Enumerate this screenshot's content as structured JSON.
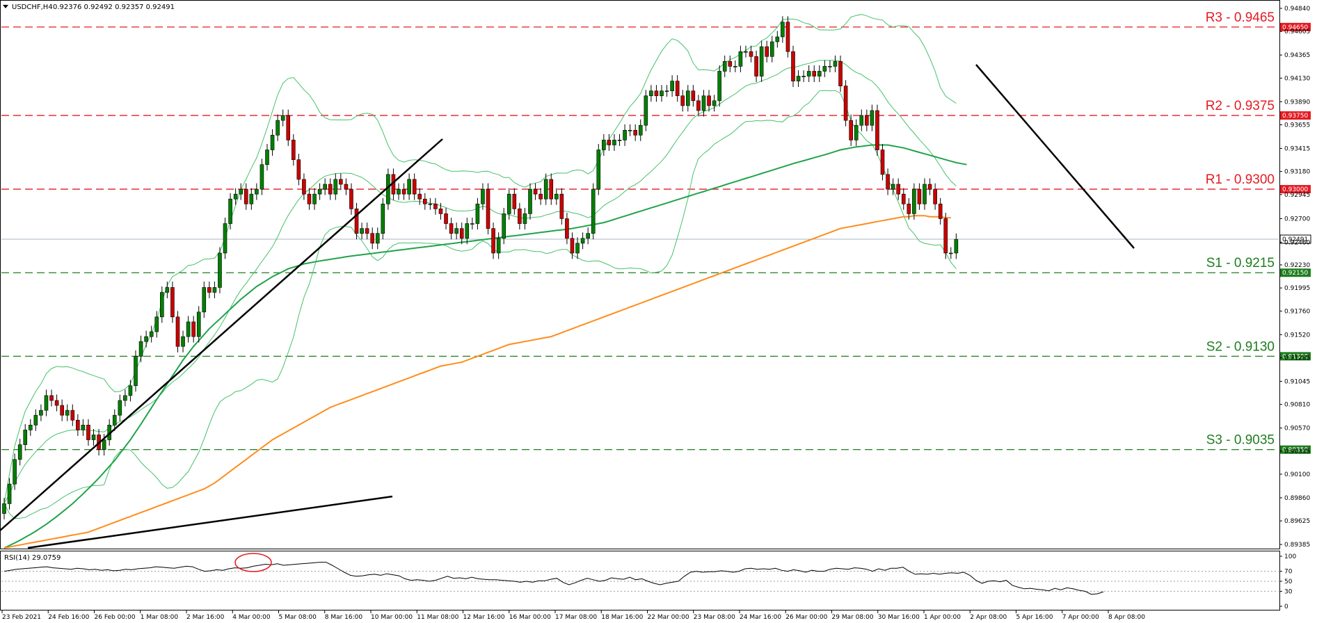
{
  "header": {
    "symbol": "USDCHF,H4",
    "ohlc": "0.92376 0.92492 0.92357 0.92491"
  },
  "rsi_header": "RSI(14) 29.0759",
  "colors": {
    "bull": "#008000",
    "bear": "#cc0000",
    "resistance": "#e31b23",
    "support": "#1e7d1e",
    "ma100": "#1fa34a",
    "ma200": "#ff8c1a",
    "bands": "#45c16a",
    "trend": "#000000",
    "price_line": "#a9b6c2",
    "circle": "#e31b23"
  },
  "chart_data": [
    {
      "type": "line",
      "name": "price",
      "ylim": [
        0.8935,
        0.9484
      ],
      "x_labels": [
        "23 Feb 2021",
        "24 Feb 16:00",
        "26 Feb 00:00",
        "1 Mar 08:00",
        "2 Mar 16:00",
        "4 Mar 00:00",
        "5 Mar 08:00",
        "8 Mar 16:00",
        "10 Mar 00:00",
        "11 Mar 08:00",
        "12 Mar 16:00",
        "16 Mar 00:00",
        "17 Mar 08:00",
        "18 Mar 16:00",
        "22 Mar 00:00",
        "23 Mar 08:00",
        "24 Mar 16:00",
        "26 Mar 00:00",
        "29 Mar 08:00",
        "30 Mar 16:00",
        "1 Apr 00:00",
        "2 Apr 08:00",
        "5 Apr 16:00",
        "7 Apr 00:00",
        "8 Apr 08:00"
      ],
      "y_ticks": [
        "0.94840",
        "0.94605",
        "0.94365",
        "0.94130",
        "0.93890",
        "0.93655",
        "0.93415",
        "0.93180",
        "0.92945",
        "0.92700",
        "0.92460",
        "0.92230",
        "0.91995",
        "0.91760",
        "0.91520",
        "0.91285",
        "0.91045",
        "0.90810",
        "0.90570",
        "0.90335",
        "0.90100",
        "0.89860",
        "0.89625",
        "0.89385"
      ],
      "levels": [
        {
          "label": "R3 - 0.9465",
          "tag": "0.94650",
          "value": 0.9465,
          "kind": "resistance"
        },
        {
          "label": "R2 - 0.9375",
          "tag": "0.93750",
          "value": 0.9375,
          "kind": "resistance"
        },
        {
          "label": "R1 - 0.9300",
          "tag": "0.93000",
          "value": 0.93,
          "kind": "resistance"
        },
        {
          "label": "S1 - 0.9215",
          "tag": "0.92150",
          "value": 0.9215,
          "kind": "support"
        },
        {
          "label": "S2 - 0.9130",
          "tag": "0.91300",
          "value": 0.913,
          "kind": "support"
        },
        {
          "label": "S3 - 0.9035",
          "tag": "0.90350",
          "value": 0.9035,
          "kind": "support"
        }
      ],
      "current_price": {
        "tag": "0.92491",
        "value": 0.92491
      },
      "close": [
        0.898,
        0.9,
        0.9025,
        0.904,
        0.9055,
        0.906,
        0.907,
        0.9075,
        0.909,
        0.9085,
        0.908,
        0.907,
        0.9075,
        0.9065,
        0.9055,
        0.906,
        0.9045,
        0.905,
        0.9035,
        0.9045,
        0.906,
        0.907,
        0.9085,
        0.909,
        0.91,
        0.913,
        0.9145,
        0.915,
        0.9155,
        0.917,
        0.9195,
        0.92,
        0.917,
        0.914,
        0.915,
        0.9165,
        0.915,
        0.9175,
        0.92,
        0.9195,
        0.92,
        0.9235,
        0.9265,
        0.929,
        0.9295,
        0.93,
        0.9285,
        0.9295,
        0.93,
        0.9325,
        0.934,
        0.9355,
        0.937,
        0.9375,
        0.935,
        0.933,
        0.931,
        0.9295,
        0.9285,
        0.9295,
        0.93,
        0.9305,
        0.9295,
        0.931,
        0.9305,
        0.93,
        0.928,
        0.9255,
        0.926,
        0.9255,
        0.9245,
        0.9255,
        0.9285,
        0.9315,
        0.9295,
        0.93,
        0.9295,
        0.931,
        0.9295,
        0.929,
        0.9285,
        0.9285,
        0.928,
        0.9275,
        0.9265,
        0.9255,
        0.926,
        0.925,
        0.9265,
        0.9265,
        0.9285,
        0.93,
        0.926,
        0.9235,
        0.925,
        0.9275,
        0.9295,
        0.928,
        0.9265,
        0.9275,
        0.93,
        0.9295,
        0.929,
        0.931,
        0.929,
        0.9295,
        0.927,
        0.925,
        0.9235,
        0.9245,
        0.925,
        0.9255,
        0.93,
        0.934,
        0.935,
        0.9345,
        0.935,
        0.935,
        0.936,
        0.936,
        0.9355,
        0.9365,
        0.9395,
        0.94,
        0.9395,
        0.94,
        0.94,
        0.941,
        0.9395,
        0.9385,
        0.94,
        0.939,
        0.938,
        0.9395,
        0.9385,
        0.939,
        0.942,
        0.943,
        0.9425,
        0.9425,
        0.944,
        0.944,
        0.9435,
        0.9415,
        0.9445,
        0.9435,
        0.945,
        0.9455,
        0.947,
        0.944,
        0.941,
        0.9415,
        0.9415,
        0.942,
        0.9415,
        0.942,
        0.9425,
        0.9425,
        0.943,
        0.9405,
        0.937,
        0.935,
        0.9365,
        0.9375,
        0.9365,
        0.938,
        0.934,
        0.9315,
        0.93,
        0.9305,
        0.9295,
        0.9285,
        0.9275,
        0.93,
        0.9285,
        0.9305,
        0.93,
        0.9285,
        0.927,
        0.9235,
        0.9235,
        0.9249
      ],
      "series": [
        {
          "name": "",
          "color": "#1fa34a",
          "values": [
            0.8935,
            0.89375,
            0.894,
            0.89428,
            0.89458,
            0.89488,
            0.8952,
            0.89555,
            0.8959,
            0.8963,
            0.8967,
            0.89713,
            0.89756,
            0.898,
            0.8985,
            0.899,
            0.89953,
            0.90006,
            0.9006,
            0.9012,
            0.9018,
            0.9024,
            0.9031,
            0.9038,
            0.9045,
            0.9053,
            0.9061,
            0.90693,
            0.90776,
            0.9086,
            0.9094,
            0.9102,
            0.911,
            0.9118,
            0.9126,
            0.9133,
            0.914,
            0.9146,
            0.9152,
            0.9158,
            0.9163,
            0.9168,
            0.9173,
            0.9178,
            0.9183,
            0.9188,
            0.91923,
            0.91966,
            0.9201,
            0.92043,
            0.92076,
            0.9211,
            0.92136,
            0.92162,
            0.9219,
            0.92206,
            0.92223,
            0.9224,
            0.9225,
            0.9226,
            0.9227,
            0.92278,
            0.92286,
            0.92295,
            0.92303,
            0.92312,
            0.9232,
            0.92326,
            0.92333,
            0.9234,
            0.92346,
            0.92353,
            0.9236,
            0.92366,
            0.92373,
            0.9238,
            0.92386,
            0.92393,
            0.924,
            0.92406,
            0.92413,
            0.9242,
            0.92426,
            0.92433,
            0.9244,
            0.92446,
            0.92453,
            0.9246,
            0.92466,
            0.92473,
            0.9248,
            0.92486,
            0.92493,
            0.925,
            0.92506,
            0.92513,
            0.9252,
            0.92526,
            0.92533,
            0.9254,
            0.92546,
            0.92553,
            0.9256,
            0.92566,
            0.92573,
            0.9258,
            0.92586,
            0.92593,
            0.926,
            0.9261,
            0.9262,
            0.9263,
            0.9264,
            0.9265,
            0.9266,
            0.92676,
            0.92693,
            0.9271,
            0.92726,
            0.92743,
            0.9276,
            0.92776,
            0.92793,
            0.9281,
            0.92826,
            0.92843,
            0.9286,
            0.92876,
            0.92893,
            0.9291,
            0.92926,
            0.92943,
            0.9296,
            0.92976,
            0.92993,
            0.9301,
            0.93026,
            0.93043,
            0.9306,
            0.93076,
            0.93093,
            0.9311,
            0.93126,
            0.93143,
            0.9316,
            0.93176,
            0.93193,
            0.9321,
            0.93226,
            0.93243,
            0.9326,
            0.93275,
            0.9329,
            0.93305,
            0.9332,
            0.93335,
            0.9335,
            0.93366,
            0.93383,
            0.934,
            0.9341,
            0.9342,
            0.9343,
            0.93436,
            0.93443,
            0.9345,
            0.9345,
            0.9345,
            0.9345,
            0.9344,
            0.9343,
            0.9342,
            0.93405,
            0.9339,
            0.93375,
            0.9336,
            0.93345,
            0.9333,
            0.93315,
            0.933,
            0.93285,
            0.9327,
            0.9326,
            0.9325
          ]
        },
        {
          "name": "",
          "color": "#ff8c1a",
          "values": [
            0.8935,
            0.8936,
            0.8937,
            0.8938,
            0.8939,
            0.894,
            0.8941,
            0.8942,
            0.8943,
            0.8944,
            0.8945,
            0.8946,
            0.8947,
            0.8948,
            0.8949,
            0.895,
            0.8951,
            0.8953,
            0.8955,
            0.8957,
            0.8959,
            0.8961,
            0.8963,
            0.8965,
            0.8967,
            0.8969,
            0.8971,
            0.8973,
            0.8975,
            0.8977,
            0.8979,
            0.8981,
            0.8983,
            0.8985,
            0.8987,
            0.8989,
            0.8991,
            0.8993,
            0.8995,
            0.8998,
            0.9001,
            0.9005,
            0.9009,
            0.9013,
            0.9017,
            0.9021,
            0.9025,
            0.9029,
            0.9033,
            0.9037,
            0.9041,
            0.9045,
            0.9048,
            0.9051,
            0.9054,
            0.9057,
            0.906,
            0.9063,
            0.9066,
            0.9069,
            0.9072,
            0.9075,
            0.9078,
            0.908,
            0.9082,
            0.9084,
            0.9086,
            0.9088,
            0.909,
            0.9092,
            0.9094,
            0.9096,
            0.9098,
            0.91,
            0.9102,
            0.9104,
            0.9106,
            0.9108,
            0.911,
            0.9112,
            0.9114,
            0.9116,
            0.9118,
            0.912,
            0.9121,
            0.9122,
            0.9123,
            0.9124,
            0.9126,
            0.9128,
            0.913,
            0.9132,
            0.9134,
            0.9136,
            0.9138,
            0.914,
            0.9142,
            0.9143,
            0.9144,
            0.9145,
            0.9146,
            0.9147,
            0.9148,
            0.9149,
            0.915,
            0.9152,
            0.9154,
            0.9156,
            0.9158,
            0.916,
            0.9162,
            0.9164,
            0.9166,
            0.9168,
            0.917,
            0.9172,
            0.9174,
            0.9176,
            0.9178,
            0.918,
            0.9182,
            0.9184,
            0.9186,
            0.9188,
            0.919,
            0.9192,
            0.9194,
            0.9196,
            0.9198,
            0.92,
            0.9202,
            0.9204,
            0.9206,
            0.9208,
            0.921,
            0.9212,
            0.9214,
            0.9216,
            0.9218,
            0.922,
            0.9222,
            0.9224,
            0.9226,
            0.9228,
            0.923,
            0.9232,
            0.9234,
            0.9236,
            0.9238,
            0.924,
            0.9242,
            0.9244,
            0.9246,
            0.9248,
            0.925,
            0.9252,
            0.9254,
            0.9256,
            0.9258,
            0.926,
            0.9261,
            0.9262,
            0.9263,
            0.9264,
            0.9265,
            0.9266,
            0.9267,
            0.9268,
            0.9269,
            0.927,
            0.9271,
            0.9272,
            0.9272,
            0.9273,
            0.9273,
            0.9273,
            0.9272,
            0.9272,
            0.9272,
            0.9271,
            0.9271
          ]
        }
      ]
    },
    {
      "type": "line",
      "name": "RSI(14)",
      "ylim": [
        0,
        100
      ],
      "y_ticks": [
        "100",
        "70",
        "50",
        "30",
        "0"
      ],
      "levels": [
        70,
        50,
        30
      ],
      "values": [
        70,
        72,
        74,
        75,
        76,
        77,
        78,
        79,
        77,
        76,
        75,
        74,
        76,
        75,
        73,
        74,
        72,
        73,
        71,
        72,
        74,
        73,
        75,
        76,
        77,
        79,
        78,
        77,
        76,
        78,
        80,
        79,
        74,
        70,
        71,
        73,
        72,
        75,
        77,
        76,
        77,
        80,
        82,
        84,
        83,
        85,
        82,
        83,
        84,
        85,
        86,
        87,
        88,
        88,
        82,
        75,
        68,
        62,
        60,
        61,
        63,
        64,
        62,
        65,
        63,
        61,
        55,
        52,
        53,
        52,
        50,
        52,
        56,
        60,
        56,
        57,
        55,
        58,
        55,
        54,
        53,
        53,
        52,
        51,
        50,
        48,
        50,
        48,
        51,
        51,
        54,
        56,
        48,
        43,
        47,
        52,
        56,
        53,
        50,
        52,
        57,
        55,
        54,
        58,
        53,
        55,
        50,
        46,
        43,
        46,
        48,
        50,
        60,
        68,
        70,
        68,
        69,
        69,
        71,
        70,
        68,
        70,
        75,
        76,
        74,
        75,
        74,
        76,
        72,
        70,
        73,
        71,
        68,
        72,
        70,
        70,
        74,
        76,
        75,
        74,
        77,
        76,
        74,
        70,
        75,
        72,
        76,
        76,
        78,
        70,
        64,
        65,
        64,
        66,
        64,
        66,
        67,
        66,
        68,
        62,
        52,
        46,
        50,
        51,
        49,
        52,
        42,
        38,
        35,
        36,
        34,
        33,
        31,
        36,
        33,
        37,
        35,
        32,
        30,
        24,
        25,
        29.08
      ]
    }
  ]
}
